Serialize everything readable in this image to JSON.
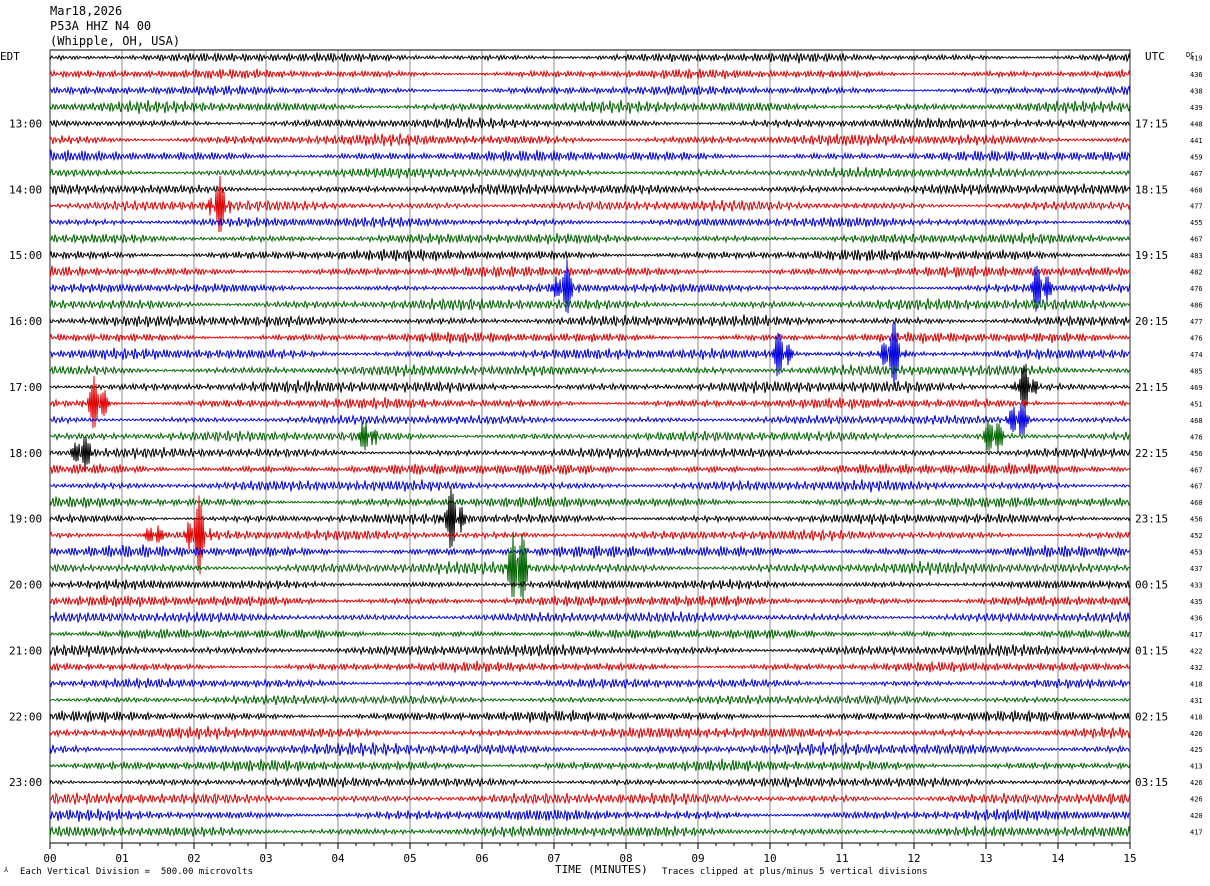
{
  "header": {
    "date": "Mar18,2026",
    "station": "P53A HHZ N4 00",
    "location": "(Whipple, OH, USA)"
  },
  "chart_data": {
    "type": "line",
    "title": "",
    "xlabel": "TIME (MINUTES)",
    "left_timezone": "EDT",
    "right_timezone": "UTC",
    "dc_label": "DC",
    "xlim": [
      0,
      15
    ],
    "x_ticks": [
      "00",
      "01",
      "02",
      "03",
      "04",
      "05",
      "06",
      "07",
      "08",
      "09",
      "10",
      "11",
      "12",
      "13",
      "14",
      "15"
    ],
    "left_hour_labels": [
      "13:00",
      "14:00",
      "15:00",
      "16:00",
      "17:00",
      "18:00",
      "19:00",
      "20:00",
      "21:00",
      "22:00",
      "23:00"
    ],
    "right_hour_labels": [
      "17:15",
      "18:15",
      "19:15",
      "20:15",
      "21:15",
      "22:15",
      "23:15",
      "00:15",
      "01:15",
      "02:15",
      "03:15"
    ],
    "trace_colors": [
      "#000000",
      "#e00000",
      "#0000e0",
      "#006400"
    ],
    "dc_offsets": [
      419,
      436,
      438,
      439,
      448,
      441,
      459,
      467,
      460,
      477,
      455,
      467,
      483,
      482,
      476,
      486,
      477,
      476,
      474,
      485,
      469,
      451,
      468,
      476,
      456,
      467,
      467,
      460,
      456,
      452,
      453,
      437,
      433,
      435,
      436,
      417,
      422,
      432,
      418,
      431,
      418,
      426,
      425,
      413,
      426,
      426,
      420,
      417
    ],
    "events": [
      {
        "row": 9,
        "minute": 2.35,
        "amp": 2.2
      },
      {
        "row": 14,
        "minute": 7.15,
        "amp": 2.2
      },
      {
        "row": 14,
        "minute": 13.75,
        "amp": 2.2
      },
      {
        "row": 18,
        "minute": 10.15,
        "amp": 2.0
      },
      {
        "row": 18,
        "minute": 11.7,
        "amp": 2.8
      },
      {
        "row": 20,
        "minute": 13.55,
        "amp": 2.0
      },
      {
        "row": 21,
        "minute": 0.65,
        "amp": 2.4
      },
      {
        "row": 22,
        "minute": 13.45,
        "amp": 1.8
      },
      {
        "row": 23,
        "minute": 4.4,
        "amp": 1.3
      },
      {
        "row": 23,
        "minute": 13.1,
        "amp": 1.8
      },
      {
        "row": 24,
        "minute": 0.45,
        "amp": 1.6
      },
      {
        "row": 28,
        "minute": 5.6,
        "amp": 2.6
      },
      {
        "row": 29,
        "minute": 1.45,
        "amp": 0.9
      },
      {
        "row": 29,
        "minute": 2.05,
        "amp": 3.2
      },
      {
        "row": 31,
        "minute": 6.5,
        "amp": 4.0
      }
    ]
  },
  "footer": {
    "scale_text": "Each Vertical Division =  500.00 microvolts",
    "clip_text": "Traces clipped at plus/minus 5 vertical divisions"
  }
}
